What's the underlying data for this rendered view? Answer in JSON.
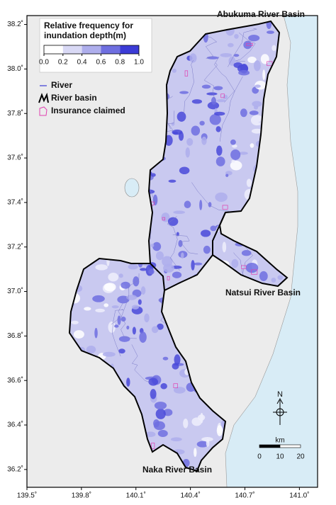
{
  "map": {
    "lonlim": [
      139.5,
      141.1
    ],
    "latlim": [
      36.12,
      38.24
    ],
    "lonticks": [
      {
        "value": 139.5,
        "label": "139.5˚"
      },
      {
        "value": 139.8,
        "label": "139.8˚"
      },
      {
        "value": 140.1,
        "label": "140.1˚"
      },
      {
        "value": 140.4,
        "label": "140.4˚"
      },
      {
        "value": 140.7,
        "label": "140.7˚"
      },
      {
        "value": 141.0,
        "label": "141.0˚"
      }
    ],
    "latticks": [
      {
        "value": 36.2,
        "label": "36.2˚"
      },
      {
        "value": 36.4,
        "label": "36.4˚"
      },
      {
        "value": 36.6,
        "label": "36.6˚"
      },
      {
        "value": 36.8,
        "label": "36.8˚"
      },
      {
        "value": 37.0,
        "label": "37.0˚"
      },
      {
        "value": 37.2,
        "label": "37.2˚"
      },
      {
        "value": 37.4,
        "label": "37.4˚"
      },
      {
        "value": 37.6,
        "label": "37.6˚"
      },
      {
        "value": 37.8,
        "label": "37.8˚"
      },
      {
        "value": 38.0,
        "label": "38.0˚"
      },
      {
        "value": 38.2,
        "label": "38.2˚"
      }
    ],
    "colorbar": {
      "title": [
        "Relative frequency for",
        "inundation depth(m)"
      ],
      "ticks": [
        {
          "value": 0,
          "label": "0.0"
        },
        {
          "value": 0.2,
          "label": "0.2"
        },
        {
          "value": 0.4,
          "label": "0.4"
        },
        {
          "value": 0.6,
          "label": "0.6"
        },
        {
          "value": 0.8,
          "label": "0.8"
        },
        {
          "value": 1,
          "label": "1.0"
        }
      ],
      "colors": [
        "#ffffff",
        "#d9d9f5",
        "#aeaeec",
        "#6f6fe0",
        "#3b3bd6"
      ]
    },
    "legend": [
      "River",
      "River basin",
      "Insurance claimed"
    ],
    "basins": [
      "Abukuma River Basin",
      "Natsui River Basin",
      "Naka River Basin"
    ],
    "north": "N",
    "scale": {
      "unit": "km",
      "ticks": [
        0,
        10,
        20
      ]
    }
  }
}
